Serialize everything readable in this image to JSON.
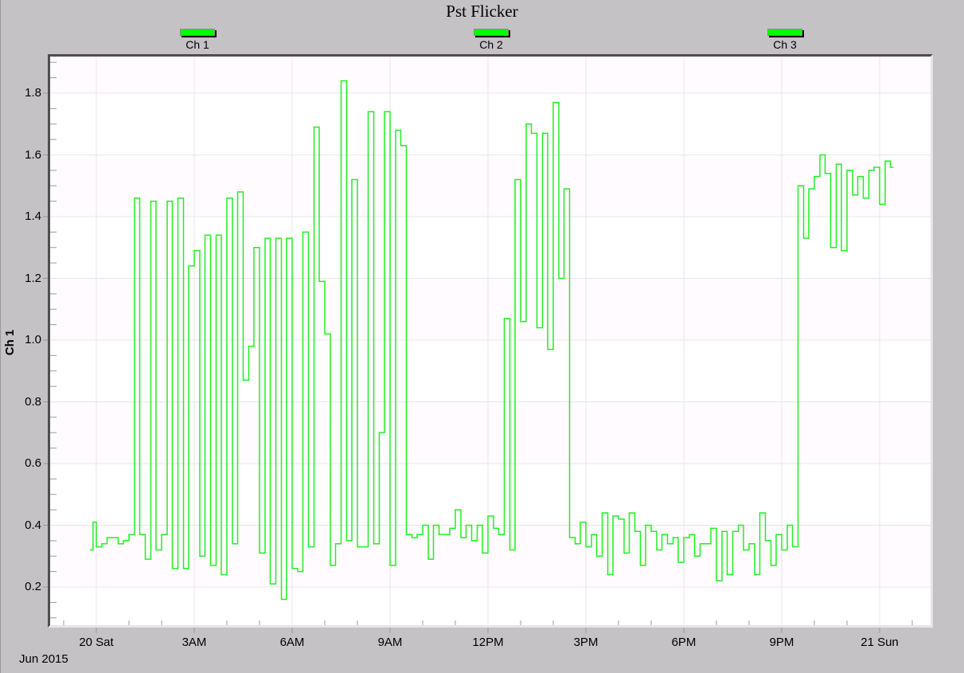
{
  "chart_data": {
    "type": "line",
    "title": "Pst Flicker",
    "xlabel": "",
    "ylabel": "Ch 1",
    "legend": [
      "Ch 1",
      "Ch 2",
      "Ch 3"
    ],
    "legend_position": "top",
    "series_color": "#22ee22",
    "legend_color": "#00ff00",
    "ylim": [
      0.07,
      1.93
    ],
    "yticks": [
      0.2,
      0.4,
      0.6,
      0.8,
      1.0,
      1.2,
      1.4,
      1.6,
      1.8
    ],
    "ytick_labels": [
      "0.2",
      "0.4",
      "0.6",
      "0.8",
      "1.0",
      "1.2",
      "1.4",
      "1.6",
      "1.8"
    ],
    "xlim_hours": [
      -1.44,
      25.68
    ],
    "xticks_hours": [
      0,
      3,
      6,
      9,
      12,
      15,
      18,
      21,
      24
    ],
    "xtick_labels": [
      "20 Sat",
      "3AM",
      "6AM",
      "9AM",
      "12PM",
      "3PM",
      "6PM",
      "9PM",
      "21 Sun"
    ],
    "date_label": "Jun 2015",
    "grid": true,
    "step": true,
    "series": [
      {
        "name": "Ch 1",
        "x_hours_since_2015-06-20T00:00": [
          -0.2,
          -0.1,
          0.0,
          0.17,
          0.33,
          0.5,
          0.67,
          0.83,
          1.0,
          1.17,
          1.33,
          1.5,
          1.67,
          1.83,
          2.0,
          2.17,
          2.33,
          2.5,
          2.67,
          2.83,
          3.0,
          3.17,
          3.33,
          3.5,
          3.67,
          3.83,
          4.0,
          4.17,
          4.33,
          4.5,
          4.67,
          4.83,
          5.0,
          5.17,
          5.33,
          5.5,
          5.67,
          5.83,
          6.0,
          6.17,
          6.33,
          6.5,
          6.67,
          6.83,
          7.0,
          7.17,
          7.33,
          7.5,
          7.67,
          7.83,
          8.0,
          8.17,
          8.33,
          8.5,
          8.67,
          8.83,
          9.0,
          9.17,
          9.33,
          9.5,
          9.67,
          9.83,
          10.0,
          10.17,
          10.33,
          10.5,
          10.67,
          10.83,
          11.0,
          11.17,
          11.33,
          11.5,
          11.67,
          11.83,
          12.0,
          12.17,
          12.33,
          12.5,
          12.67,
          12.83,
          13.0,
          13.17,
          13.33,
          13.5,
          13.67,
          13.83,
          14.0,
          14.17,
          14.33,
          14.5,
          14.67,
          14.83,
          15.0,
          15.17,
          15.33,
          15.5,
          15.67,
          15.83,
          16.0,
          16.17,
          16.33,
          16.5,
          16.67,
          16.83,
          17.0,
          17.17,
          17.33,
          17.5,
          17.67,
          17.83,
          18.0,
          18.17,
          18.33,
          18.5,
          18.67,
          18.83,
          19.0,
          19.17,
          19.33,
          19.5,
          19.67,
          19.83,
          20.0,
          20.17,
          20.33,
          20.5,
          20.67,
          20.83,
          21.0,
          21.17,
          21.33,
          21.5,
          21.67,
          21.83,
          22.0,
          22.17,
          22.33,
          22.5,
          22.67,
          22.83,
          23.0,
          23.17,
          23.33,
          23.5,
          23.67,
          23.83,
          24.0,
          24.17,
          24.33
        ],
        "values": [
          0.32,
          0.41,
          0.33,
          0.34,
          0.36,
          0.36,
          0.34,
          0.35,
          0.37,
          1.46,
          0.37,
          0.29,
          1.45,
          0.32,
          0.37,
          1.45,
          0.26,
          1.46,
          0.26,
          1.24,
          1.29,
          0.3,
          1.34,
          0.27,
          1.34,
          0.24,
          1.46,
          0.34,
          1.48,
          0.87,
          0.98,
          1.3,
          0.31,
          1.33,
          0.21,
          1.33,
          0.16,
          1.33,
          0.26,
          0.25,
          1.35,
          0.33,
          1.69,
          1.19,
          1.02,
          0.27,
          0.34,
          1.84,
          0.35,
          1.52,
          0.33,
          0.33,
          1.74,
          0.34,
          0.7,
          1.74,
          0.27,
          1.68,
          1.63,
          0.37,
          0.36,
          0.37,
          0.4,
          0.29,
          0.4,
          0.37,
          0.37,
          0.39,
          0.45,
          0.36,
          0.4,
          0.35,
          0.4,
          0.31,
          0.43,
          0.39,
          0.37,
          1.07,
          0.32,
          1.52,
          1.06,
          1.7,
          1.67,
          1.04,
          1.67,
          0.97,
          1.77,
          1.2,
          1.49,
          0.36,
          0.34,
          0.41,
          0.33,
          0.37,
          0.3,
          0.44,
          0.24,
          0.43,
          0.42,
          0.31,
          0.44,
          0.38,
          0.27,
          0.4,
          0.38,
          0.32,
          0.37,
          0.34,
          0.36,
          0.28,
          0.36,
          0.37,
          0.3,
          0.34,
          0.34,
          0.39,
          0.22,
          0.38,
          0.24,
          0.38,
          0.4,
          0.32,
          0.34,
          0.24,
          0.44,
          0.35,
          0.27,
          0.37,
          0.32,
          0.4,
          0.33,
          1.5,
          1.33,
          1.49,
          1.53,
          1.6,
          1.54,
          1.3,
          1.57,
          1.29,
          1.55,
          1.47,
          1.53,
          1.46,
          1.55,
          1.56,
          1.44,
          1.58,
          1.56
        ]
      }
    ]
  },
  "chart": {
    "title": "Pst Flicker",
    "ylabel": "Ch 1",
    "date_label": "Jun 2015",
    "legend": [
      {
        "label": "Ch 1"
      },
      {
        "label": "Ch 2"
      },
      {
        "label": "Ch 3"
      }
    ],
    "colors": {
      "background": "#c4c2c4",
      "plot_band_a": "#fffbff",
      "plot_band_b": "#ffffff",
      "grid": "#e8e6e8",
      "line": "#22ee22",
      "frame_dark": "#4e4e4e",
      "frame_light": "#e6e4e6",
      "tick": "#9a9a9a"
    }
  }
}
